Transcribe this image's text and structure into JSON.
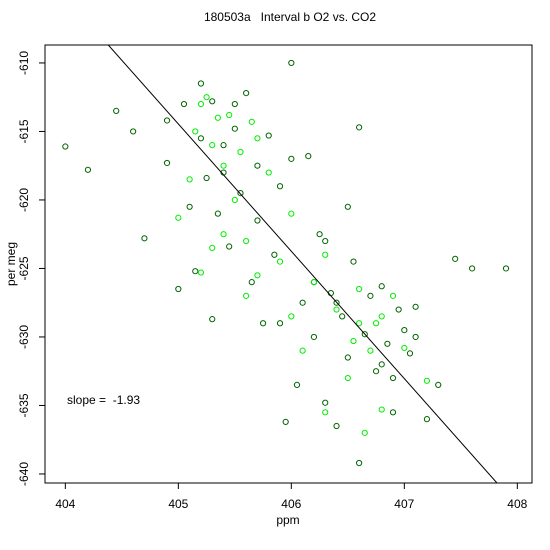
{
  "chart_data": {
    "type": "scatter",
    "title": "180503a   Interval b O2 vs. CO2",
    "x_label": "ppm",
    "y_label": "per meg",
    "annotation": "slope =  -1.93",
    "xlim": [
      403.82,
      408.13
    ],
    "ylim": [
      -640.66,
      -608.69
    ],
    "xticks": [
      404,
      405,
      406,
      407,
      408
    ],
    "yticks": [
      -640,
      -635,
      -630,
      -625,
      -620,
      -615,
      -610
    ],
    "series": [
      {
        "color": "#006400",
        "x": [
          404.0,
          404.2,
          404.45,
          404.6,
          404.7,
          404.9,
          405.0,
          405.05,
          405.1,
          405.15,
          405.2,
          405.25,
          405.3,
          405.35,
          405.4,
          405.45,
          405.5,
          405.55,
          405.6,
          405.65,
          405.7,
          405.75,
          405.8,
          405.85,
          405.9,
          405.95,
          406.0,
          406.05,
          406.1,
          406.15,
          406.2,
          406.25,
          406.3,
          406.35,
          406.4,
          406.45,
          406.5,
          406.55,
          406.6,
          406.65,
          406.7,
          406.75,
          406.8,
          406.85,
          406.9,
          406.95,
          407.0,
          407.05,
          407.1,
          407.2,
          407.3,
          407.45,
          407.6,
          407.9,
          405.2,
          405.4,
          405.7,
          406.0,
          406.3,
          406.5,
          406.8,
          407.1,
          405.9,
          406.2,
          405.5,
          406.6,
          404.9,
          405.3,
          406.9,
          406.4
        ],
        "values": [
          -616.1,
          -617.8,
          -613.5,
          -615.0,
          -622.8,
          -614.2,
          -626.5,
          -613.0,
          -620.5,
          -625.2,
          -611.5,
          -618.4,
          -612.8,
          -621.0,
          -616.0,
          -623.4,
          -614.8,
          -619.5,
          -612.2,
          -626.0,
          -617.5,
          -629.0,
          -615.3,
          -624.0,
          -619.0,
          -636.2,
          -610.0,
          -633.5,
          -627.5,
          -616.8,
          -630.0,
          -622.5,
          -634.8,
          -626.8,
          -636.5,
          -628.5,
          -631.5,
          -624.5,
          -639.2,
          -629.8,
          -627.0,
          -632.5,
          -626.3,
          -630.5,
          -633.0,
          -628.0,
          -629.5,
          -631.2,
          -627.8,
          -636.0,
          -633.5,
          -624.3,
          -625.0,
          -625.0,
          -615.5,
          -618.0,
          -621.5,
          -617.0,
          -623.0,
          -620.5,
          -632.0,
          -630.0,
          -629.0,
          -626.0,
          -613.0,
          -614.7,
          -617.3,
          -628.7,
          -635.5,
          -627.5
        ]
      },
      {
        "color": "#00ee00",
        "x": [
          405.0,
          405.1,
          405.15,
          405.2,
          405.25,
          405.3,
          405.35,
          405.4,
          405.45,
          405.5,
          405.55,
          405.6,
          405.65,
          405.7,
          405.8,
          405.9,
          406.0,
          406.1,
          406.2,
          406.3,
          406.4,
          406.5,
          406.55,
          406.6,
          406.65,
          406.7,
          406.75,
          406.8,
          406.9,
          407.0,
          405.2,
          405.4,
          405.6,
          406.0,
          406.3,
          406.6,
          406.8,
          407.2,
          405.3,
          405.7
        ],
        "values": [
          -621.3,
          -618.5,
          -615.0,
          -625.3,
          -612.5,
          -623.5,
          -614.0,
          -617.5,
          -613.8,
          -620.0,
          -616.5,
          -623.0,
          -614.3,
          -625.5,
          -618.0,
          -624.5,
          -628.5,
          -631.0,
          -626.0,
          -635.5,
          -628.0,
          -633.0,
          -630.3,
          -626.5,
          -637.0,
          -631.0,
          -629.0,
          -635.3,
          -627.0,
          -630.8,
          -613.0,
          -622.5,
          -627.0,
          -621.0,
          -624.0,
          -629.0,
          -628.5,
          -633.2,
          -616.0,
          -615.5
        ]
      }
    ],
    "fit_line": {
      "color": "#000000",
      "x": [
        404.38,
        407.82
      ],
      "y": [
        -608.69,
        -640.66
      ]
    }
  }
}
